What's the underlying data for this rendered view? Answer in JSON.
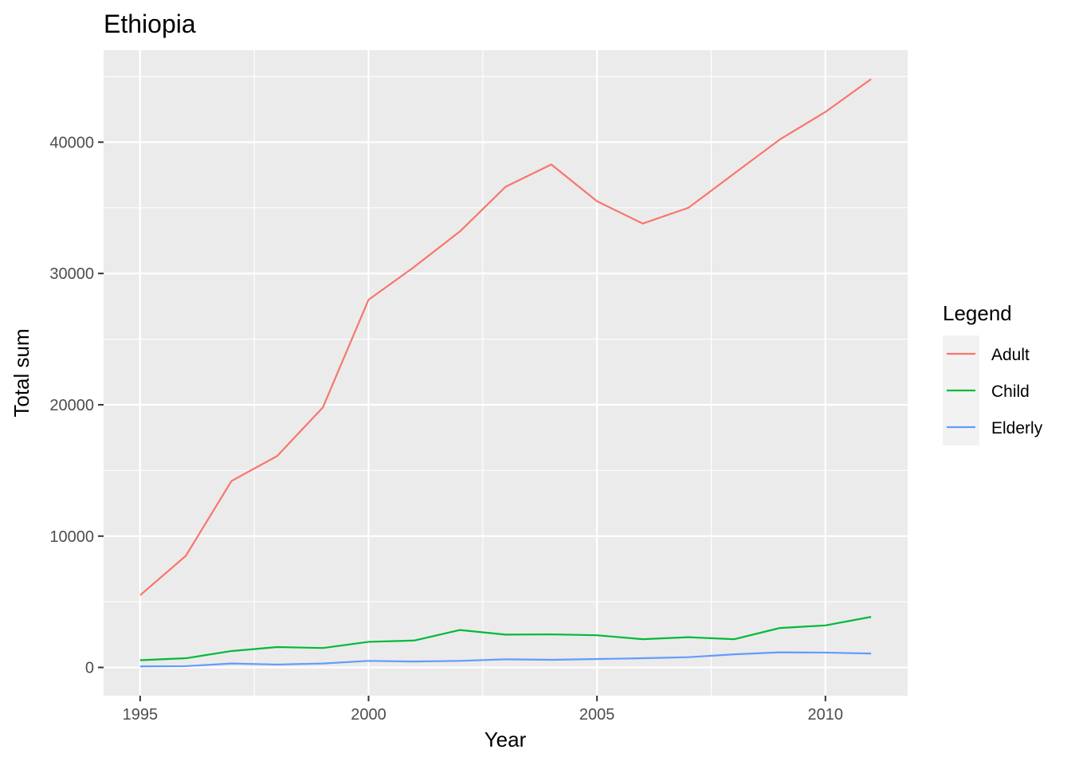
{
  "chart_data": {
    "type": "line",
    "title": "Ethiopia",
    "xlabel": "Year",
    "ylabel": "Total sum",
    "xlim": [
      1994.2,
      2011.8
    ],
    "ylim": [
      -2150,
      47000
    ],
    "x_ticks": [
      1995,
      2000,
      2005,
      2010
    ],
    "y_ticks": [
      0,
      10000,
      20000,
      30000,
      40000
    ],
    "x_tick_labels": [
      "1995",
      "2000",
      "2005",
      "2010"
    ],
    "y_tick_labels": [
      "0",
      "10000",
      "20000",
      "30000",
      "40000"
    ],
    "grid": true,
    "legend": {
      "title": "Legend",
      "position": "right"
    },
    "x": [
      1995,
      1996,
      1997,
      1998,
      1999,
      2000,
      2001,
      2002,
      2003,
      2004,
      2005,
      2006,
      2007,
      2008,
      2009,
      2010,
      2011
    ],
    "series": [
      {
        "name": "Adult",
        "color": "#F8766D",
        "values": [
          5500,
          8500,
          14200,
          16100,
          19800,
          28000,
          30500,
          33200,
          36600,
          38300,
          35500,
          33800,
          35000,
          37600,
          40200,
          42300,
          44800
        ]
      },
      {
        "name": "Child",
        "color": "#00BA38",
        "values": [
          550,
          700,
          1250,
          1550,
          1480,
          1950,
          2050,
          2850,
          2500,
          2520,
          2450,
          2150,
          2300,
          2150,
          3000,
          3200,
          3850
        ]
      },
      {
        "name": "Elderly",
        "color": "#619CFF",
        "values": [
          80,
          100,
          300,
          220,
          300,
          500,
          450,
          500,
          620,
          580,
          640,
          700,
          780,
          1000,
          1150,
          1130,
          1060
        ]
      }
    ]
  }
}
